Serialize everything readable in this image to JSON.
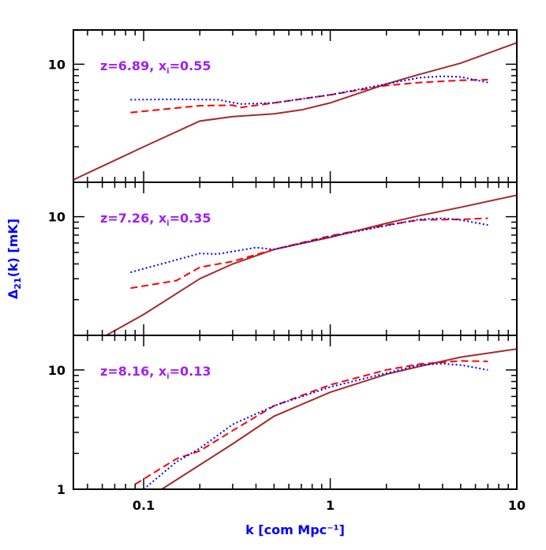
{
  "chart_data": {
    "type": "line",
    "xlabel": "k [com Mpc⁻¹]",
    "ylabel": "Δ",
    "ylabel_sub": "21",
    "ylabel_rest": "(k) [mK]",
    "x_scale": "log",
    "y_scale": "log",
    "xlim": [
      0.042,
      10
    ],
    "x_ticks": [
      {
        "v": 0.1,
        "label": "0.1"
      },
      {
        "v": 1,
        "label": "1"
      },
      {
        "v": 10,
        "label": "10"
      }
    ],
    "colors": {
      "solid": "#a52a2a",
      "dashed": "#ff0000",
      "dotted": "#0000ff",
      "annotation": "#a020f0",
      "axis_label": "#0000ff"
    },
    "panels": [
      {
        "annotation": "z=6.89,  x",
        "annotation_sub": "i",
        "annotation_rest": "=0.55",
        "ylim": [
          1,
          19.5
        ],
        "y_ticks": [
          {
            "v": 10,
            "label": "10"
          }
        ],
        "series": [
          {
            "style": "solid",
            "x": [
              0.042,
              0.1,
              0.2,
              0.3,
              0.5,
              0.7,
              1,
              2,
              3,
              5,
              10
            ],
            "y": [
              1.05,
              2.0,
              3.3,
              3.6,
              3.8,
              4.1,
              4.7,
              6.8,
              8.2,
              10.2,
              15.2
            ]
          },
          {
            "style": "dashed",
            "x": [
              0.085,
              0.2,
              0.3,
              0.33,
              0.5,
              1,
              2,
              3,
              5,
              7
            ],
            "y": [
              3.9,
              4.45,
              4.5,
              4.3,
              4.7,
              5.5,
              6.6,
              7.0,
              7.3,
              7.4
            ]
          },
          {
            "style": "dotted",
            "x": [
              0.085,
              0.15,
              0.25,
              0.33,
              0.5,
              1,
              2,
              3,
              4,
              5,
              7
            ],
            "y": [
              5.0,
              5.05,
              5.0,
              4.6,
              4.7,
              5.5,
              6.8,
              7.7,
              7.9,
              7.8,
              7.0
            ]
          }
        ]
      },
      {
        "annotation": "z=7.26,  x",
        "annotation_sub": "i",
        "annotation_rest": "=0.35",
        "ylim": [
          1,
          19.5
        ],
        "y_ticks": [
          {
            "v": 10,
            "label": "10"
          }
        ],
        "series": [
          {
            "style": "solid",
            "x": [
              0.063,
              0.1,
              0.2,
              0.3,
              0.5,
              1,
              2,
              3,
              5,
              10
            ],
            "y": [
              1.0,
              1.5,
              3.0,
              4.0,
              5.3,
              6.7,
              8.8,
              10.2,
              12,
              15.2
            ]
          },
          {
            "style": "dashed",
            "x": [
              0.085,
              0.15,
              0.2,
              0.3,
              0.5,
              1,
              2,
              3,
              5,
              7
            ],
            "y": [
              2.5,
              2.9,
              3.75,
              4.2,
              5.3,
              6.9,
              8.5,
              9.4,
              9.5,
              9.7
            ]
          },
          {
            "style": "dotted",
            "x": [
              0.085,
              0.2,
              0.25,
              0.4,
              0.5,
              1,
              2,
              3,
              4,
              5,
              7
            ],
            "y": [
              3.4,
              4.9,
              4.85,
              5.5,
              5.3,
              6.8,
              8.4,
              9.5,
              9.7,
              9.4,
              8.5
            ]
          }
        ]
      },
      {
        "annotation": "z=8.16,  x",
        "annotation_sub": "i",
        "annotation_rest": "=0.13",
        "ylim": [
          1,
          19.5
        ],
        "y_ticks": [
          {
            "v": 1,
            "label": "1"
          },
          {
            "v": 10,
            "label": "10"
          }
        ],
        "series": [
          {
            "style": "solid",
            "x": [
              0.125,
              0.2,
              0.3,
              0.5,
              1,
              2,
              3,
              5,
              10
            ],
            "y": [
              1.0,
              1.6,
              2.4,
              4.1,
              6.5,
              9.2,
              10.7,
              12.8,
              15
            ]
          },
          {
            "style": "dashed",
            "x": [
              0.09,
              0.15,
              0.2,
              0.3,
              0.5,
              1,
              2,
              3,
              5,
              7
            ],
            "y": [
              1.1,
              1.8,
              2.1,
              3.1,
              5.0,
              7.5,
              10,
              11.2,
              11.9,
              11.8
            ]
          },
          {
            "style": "dotted",
            "x": [
              0.1,
              0.15,
              0.2,
              0.3,
              0.5,
              1,
              2,
              3,
              4,
              5,
              7
            ],
            "y": [
              1.0,
              1.7,
              2.2,
              3.5,
              5.0,
              7.2,
              9.4,
              11,
              11.3,
              11,
              10
            ]
          }
        ]
      }
    ]
  }
}
